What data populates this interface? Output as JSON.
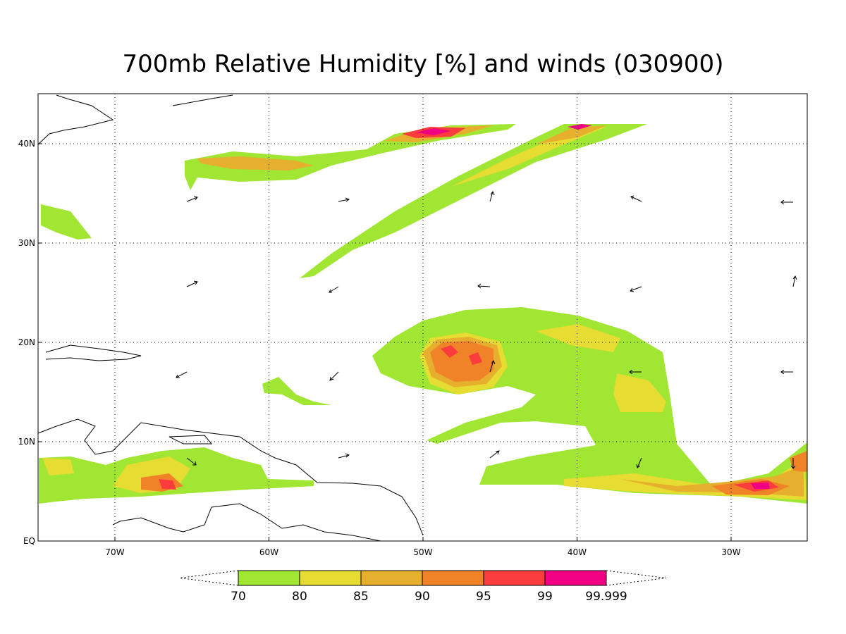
{
  "title": "700mb Relative Humidity [%] and winds (030900)",
  "map": {
    "lon_labels": [
      "70W",
      "60W",
      "50W",
      "40W",
      "30W"
    ],
    "lat_labels": [
      "EQ",
      "10N",
      "20N",
      "30N",
      "40N"
    ]
  },
  "colorbar": {
    "levels": [
      "70",
      "80",
      "85",
      "90",
      "95",
      "99",
      "99.999"
    ],
    "colors": [
      "#a0e632",
      "#e6dc32",
      "#e6af2d",
      "#f08228",
      "#fa3c3c",
      "#f00082"
    ]
  }
}
